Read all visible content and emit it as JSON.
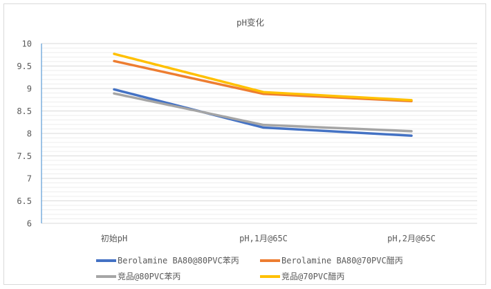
{
  "chart_data": {
    "type": "line",
    "title": "pH变化",
    "categories": [
      "初始pH",
      "pH,1月@65C",
      "pH,2月@65C"
    ],
    "ylim": [
      6,
      10
    ],
    "yticks": [
      "10",
      "9.5",
      "9",
      "8.5",
      "8",
      "7.5",
      "7",
      "6.5",
      "6"
    ],
    "grid": true,
    "legend_position": "bottom",
    "series": [
      {
        "name": "Berolamine BA80@80PVC苯丙",
        "values": [
          8.98,
          8.13,
          7.95
        ],
        "color": "#4472c4"
      },
      {
        "name": "Berolamine BA80@70PVC醋丙",
        "values": [
          9.61,
          8.88,
          8.72
        ],
        "color": "#ed7d31"
      },
      {
        "name": "竞品@80PVC苯丙",
        "values": [
          8.89,
          8.19,
          8.05
        ],
        "color": "#a5a5a5"
      },
      {
        "name": "竞品@70PVC醋丙",
        "values": [
          9.77,
          8.92,
          8.74
        ],
        "color": "#ffc000"
      }
    ]
  }
}
